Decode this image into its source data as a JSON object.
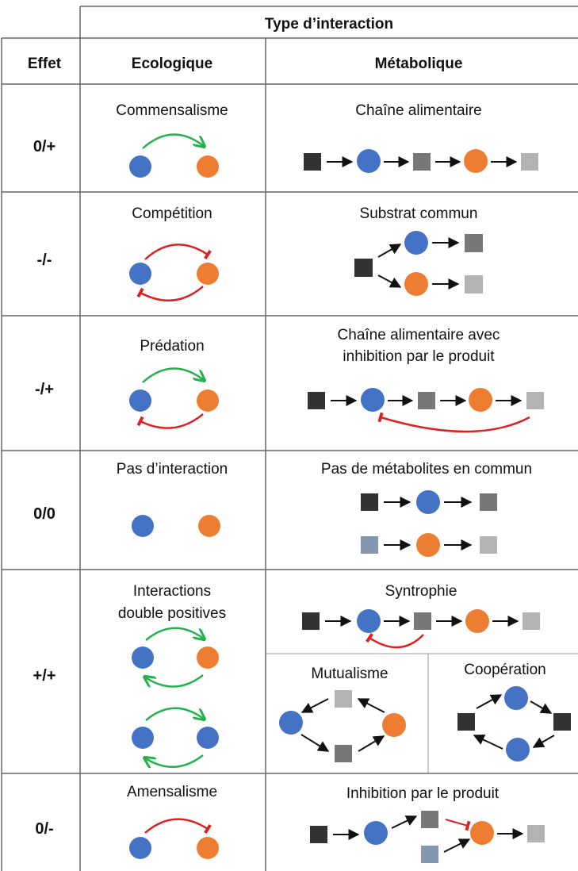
{
  "header": {
    "title": "Type d’interaction",
    "col_effet": "Effet",
    "col_eco": "Ecologique",
    "col_meta": "Métabolique"
  },
  "rows": [
    {
      "effect": "0/+",
      "eco": "Commensalisme",
      "meta": "Chaîne alimentaire"
    },
    {
      "effect": "-/-",
      "eco": "Compétition",
      "meta": "Substrat commun"
    },
    {
      "effect": "-/+",
      "eco": "Prédation",
      "meta_line1": "Chaîne alimentaire avec",
      "meta_line2": "inhibition par le produit"
    },
    {
      "effect": "0/0",
      "eco": "Pas d’interaction",
      "meta": "Pas de métabolites en commun"
    },
    {
      "effect": "+/+",
      "eco_line1": "Interactions",
      "eco_line2": "double positives",
      "meta": "Syntrophie",
      "sub1": "Mutualisme",
      "sub2": "Coopération"
    },
    {
      "effect": "0/-",
      "eco": "Amensalisme",
      "meta": "Inhibition par le produit"
    }
  ],
  "colors": {
    "blue": "#4472c4",
    "orange": "#ed7d31",
    "green": "#22b14c",
    "red": "#e02020",
    "dark": "#333333",
    "mid": "#777777",
    "light": "#b3b3b3",
    "slate": "#8497b0",
    "border": "#666666"
  }
}
